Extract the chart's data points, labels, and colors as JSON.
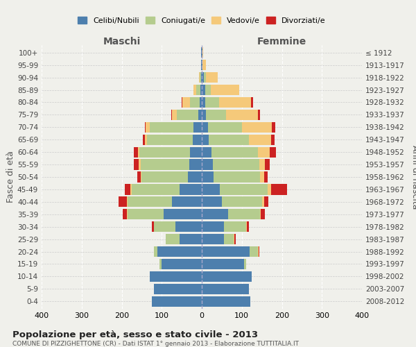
{
  "age_groups": [
    "0-4",
    "5-9",
    "10-14",
    "15-19",
    "20-24",
    "25-29",
    "30-34",
    "35-39",
    "40-44",
    "45-49",
    "50-54",
    "55-59",
    "60-64",
    "65-69",
    "70-74",
    "75-79",
    "80-84",
    "85-89",
    "90-94",
    "95-99",
    "100+"
  ],
  "birth_years": [
    "2008-2012",
    "2003-2007",
    "1998-2002",
    "1993-1997",
    "1988-1992",
    "1983-1987",
    "1978-1982",
    "1973-1977",
    "1968-1972",
    "1963-1967",
    "1958-1962",
    "1953-1957",
    "1948-1952",
    "1943-1947",
    "1938-1942",
    "1933-1937",
    "1928-1932",
    "1923-1927",
    "1918-1922",
    "1913-1917",
    "≤ 1912"
  ],
  "colors": {
    "celibi": "#4d7fad",
    "coniugati": "#b5cc8e",
    "vedovi": "#f5c97a",
    "divorziati": "#cc2222"
  },
  "males": {
    "celibi": [
      125,
      120,
      130,
      100,
      110,
      55,
      65,
      95,
      75,
      55,
      35,
      32,
      30,
      22,
      20,
      8,
      5,
      3,
      2,
      1,
      1
    ],
    "coniugati": [
      0,
      0,
      0,
      5,
      10,
      35,
      55,
      90,
      110,
      120,
      115,
      120,
      125,
      115,
      110,
      55,
      25,
      10,
      3,
      0,
      0
    ],
    "vedovi": [
      0,
      0,
      0,
      0,
      0,
      0,
      0,
      2,
      2,
      3,
      3,
      5,
      5,
      5,
      10,
      12,
      18,
      8,
      2,
      0,
      0
    ],
    "divorziati": [
      0,
      0,
      0,
      0,
      0,
      0,
      5,
      10,
      20,
      15,
      8,
      12,
      10,
      5,
      2,
      2,
      2,
      0,
      0,
      0,
      0
    ]
  },
  "females": {
    "celibi": [
      122,
      118,
      125,
      105,
      120,
      55,
      55,
      65,
      50,
      45,
      30,
      28,
      25,
      18,
      15,
      10,
      8,
      8,
      5,
      2,
      2
    ],
    "coniugati": [
      0,
      0,
      0,
      5,
      20,
      25,
      55,
      80,
      100,
      120,
      115,
      115,
      115,
      100,
      85,
      50,
      35,
      15,
      5,
      0,
      0
    ],
    "vedovi": [
      0,
      0,
      0,
      0,
      2,
      2,
      2,
      3,
      5,
      8,
      10,
      15,
      30,
      55,
      75,
      80,
      80,
      70,
      30,
      8,
      2
    ],
    "divorziati": [
      0,
      0,
      0,
      0,
      2,
      3,
      5,
      10,
      12,
      40,
      10,
      12,
      15,
      8,
      8,
      5,
      5,
      0,
      0,
      0,
      0
    ]
  },
  "xlim": 400,
  "title": "Popolazione per età, sesso e stato civile - 2013",
  "subtitle": "COMUNE DI PIZZIGHETTONE (CR) - Dati ISTAT 1° gennaio 2013 - Elaborazione TUTTITALIA.IT",
  "ylabel_left": "Fasce di età",
  "ylabel_right": "Anni di nascita",
  "xlabel_left": "Maschi",
  "xlabel_right": "Femmine",
  "background_color": "#f0f0eb",
  "bar_height": 0.85
}
